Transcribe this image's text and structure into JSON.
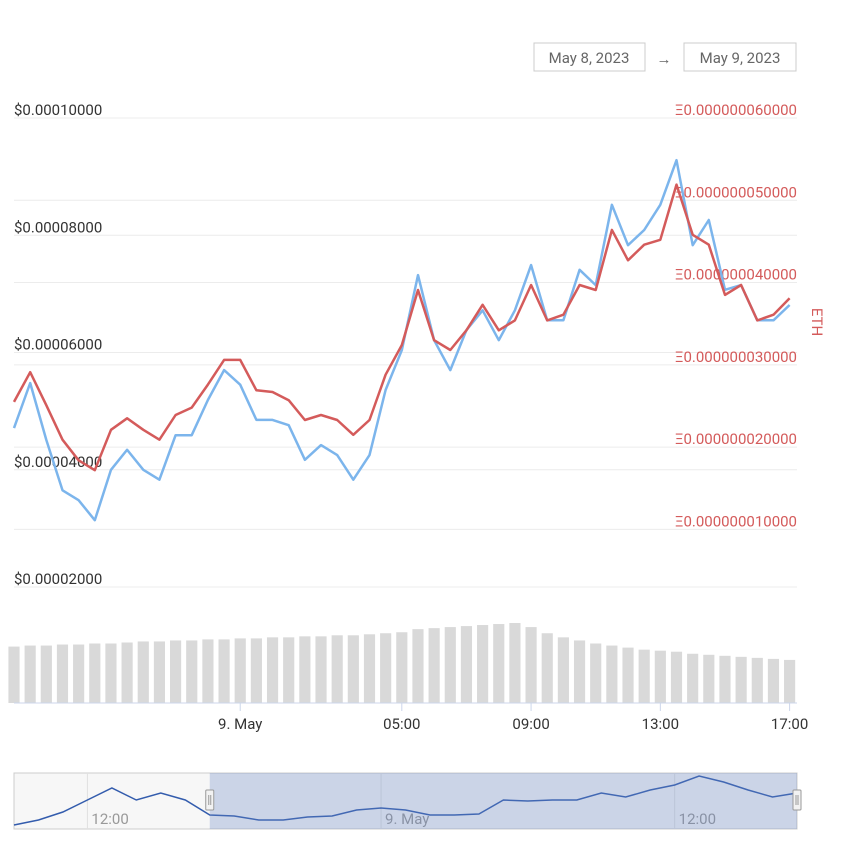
{
  "date_range": {
    "from": "May 8, 2023",
    "separator": "→",
    "to": "May 9, 2023"
  },
  "chart_data": {
    "type": "line",
    "x": [
      "2023-05-08 17:00",
      "2023-05-08 17:30",
      "2023-05-08 18:00",
      "2023-05-08 18:30",
      "2023-05-08 19:00",
      "2023-05-08 19:30",
      "2023-05-08 20:00",
      "2023-05-08 20:30",
      "2023-05-08 21:00",
      "2023-05-08 21:30",
      "2023-05-08 22:00",
      "2023-05-08 22:30",
      "2023-05-08 23:00",
      "2023-05-08 23:30",
      "2023-05-09 00:00",
      "2023-05-09 00:30",
      "2023-05-09 01:00",
      "2023-05-09 01:30",
      "2023-05-09 02:00",
      "2023-05-09 02:30",
      "2023-05-09 03:00",
      "2023-05-09 03:30",
      "2023-05-09 04:00",
      "2023-05-09 04:30",
      "2023-05-09 05:00",
      "2023-05-09 05:30",
      "2023-05-09 06:00",
      "2023-05-09 06:30",
      "2023-05-09 07:00",
      "2023-05-09 07:30",
      "2023-05-09 08:00",
      "2023-05-09 08:30",
      "2023-05-09 09:00",
      "2023-05-09 09:30",
      "2023-05-09 10:00",
      "2023-05-09 10:30",
      "2023-05-09 11:00",
      "2023-05-09 11:30",
      "2023-05-09 12:00",
      "2023-05-09 12:30",
      "2023-05-09 13:00",
      "2023-05-09 13:30",
      "2023-05-09 14:00",
      "2023-05-09 14:30",
      "2023-05-09 15:00",
      "2023-05-09 15:30",
      "2023-05-09 16:00",
      "2023-05-09 16:30",
      "2023-05-09 17:00"
    ],
    "xlim": [
      "2023-05-08 17:00",
      "2023-05-09 17:10"
    ],
    "xticks": [
      {
        "value": "2023-05-09 00:00",
        "label": "9. May"
      },
      {
        "value": "2023-05-09 05:00",
        "label": "05:00"
      },
      {
        "value": "2023-05-09 09:00",
        "label": "09:00"
      },
      {
        "value": "2023-05-09 13:00",
        "label": "13:00"
      },
      {
        "value": "2023-05-09 17:00",
        "label": "17:00"
      }
    ],
    "ylim": [
      2e-05,
      0.0001
    ],
    "yticks": [
      {
        "value": 2e-05,
        "label": "$0.00002000"
      },
      {
        "value": 4e-05,
        "label": "$0.00004000"
      },
      {
        "value": 6e-05,
        "label": "$0.00006000"
      },
      {
        "value": 8e-05,
        "label": "$0.00008000"
      },
      {
        "value": 0.0001,
        "label": "$0.00010000"
      }
    ],
    "y2lim": [
      3e-09,
      6e-08
    ],
    "y2ticks": [
      {
        "value": 1e-08,
        "label": "Ξ0.000000010000"
      },
      {
        "value": 2e-08,
        "label": "Ξ0.000000020000"
      },
      {
        "value": 3e-08,
        "label": "Ξ0.000000030000"
      },
      {
        "value": 4e-08,
        "label": "Ξ0.000000040000"
      },
      {
        "value": 5e-08,
        "label": "Ξ0.000000050000"
      },
      {
        "value": 6e-08,
        "label": "Ξ0.000000060000"
      }
    ],
    "y2label": "ETH",
    "grid": true,
    "series": [
      {
        "color": "#7cb5ec",
        "values": [
          4.71e-05,
          5.48e-05,
          4.51e-05,
          3.65e-05,
          3.48e-05,
          3.14e-05,
          4e-05,
          4.34e-05,
          4e-05,
          3.83e-05,
          4.59e-05,
          4.59e-05,
          5.19e-05,
          5.7e-05,
          5.45e-05,
          4.85e-05,
          4.85e-05,
          4.76e-05,
          4.17e-05,
          4.42e-05,
          4.25e-05,
          3.83e-05,
          4.25e-05,
          5.36e-05,
          6.04e-05,
          7.32e-05,
          6.21e-05,
          5.7e-05,
          6.38e-05,
          6.72e-05,
          6.21e-05,
          6.72e-05,
          7.49e-05,
          6.55e-05,
          6.55e-05,
          7.41e-05,
          7.15e-05,
          8.52e-05,
          7.83e-05,
          8.09e-05,
          8.52e-05,
          9.28e-05,
          7.83e-05,
          8.26e-05,
          7.07e-05,
          7.15e-05,
          6.55e-05,
          6.55e-05,
          6.81e-05
        ]
      },
      {
        "color": "#d45b5b",
        "axis": "y2",
        "values": [
          2.55e-08,
          2.91e-08,
          2.51e-08,
          2.09e-08,
          1.84e-08,
          1.72e-08,
          2.21e-08,
          2.35e-08,
          2.21e-08,
          2.09e-08,
          2.39e-08,
          2.48e-08,
          2.76e-08,
          3.06e-08,
          3.06e-08,
          2.69e-08,
          2.67e-08,
          2.57e-08,
          2.33e-08,
          2.39e-08,
          2.33e-08,
          2.15e-08,
          2.33e-08,
          2.88e-08,
          3.24e-08,
          3.91e-08,
          3.3e-08,
          3.18e-08,
          3.42e-08,
          3.73e-08,
          3.42e-08,
          3.54e-08,
          3.97e-08,
          3.54e-08,
          3.61e-08,
          3.97e-08,
          3.91e-08,
          4.64e-08,
          4.27e-08,
          4.46e-08,
          4.52e-08,
          5.19e-08,
          4.58e-08,
          4.46e-08,
          3.85e-08,
          3.97e-08,
          3.54e-08,
          3.61e-08,
          3.81e-08
        ]
      }
    ],
    "volume": {
      "color": "#d9d9d9",
      "values": [
        55,
        56,
        56,
        57,
        57,
        58,
        58,
        59,
        60,
        60,
        61,
        61,
        62,
        62,
        63,
        63,
        64,
        64,
        65,
        65,
        66,
        66,
        67,
        68,
        69,
        72,
        73,
        74,
        75,
        76,
        77,
        78,
        74,
        68,
        64,
        61,
        58,
        56,
        54,
        52,
        51,
        50,
        48,
        47,
        46,
        45,
        44,
        43,
        42
      ]
    },
    "navigator": {
      "x": [
        "2023-05-08 09:00",
        "2023-05-08 10:00",
        "2023-05-08 11:00",
        "2023-05-08 12:00",
        "2023-05-08 13:00",
        "2023-05-08 14:00",
        "2023-05-08 15:00",
        "2023-05-08 16:00",
        "2023-05-08 17:00",
        "2023-05-08 18:00",
        "2023-05-08 19:00",
        "2023-05-08 20:00",
        "2023-05-08 21:00",
        "2023-05-08 22:00",
        "2023-05-08 23:00",
        "2023-05-09 00:00",
        "2023-05-09 01:00",
        "2023-05-09 02:00",
        "2023-05-09 03:00",
        "2023-05-09 04:00",
        "2023-05-09 05:00",
        "2023-05-09 06:00",
        "2023-05-09 07:00",
        "2023-05-09 08:00",
        "2023-05-09 09:00",
        "2023-05-09 10:00",
        "2023-05-09 11:00",
        "2023-05-09 12:00",
        "2023-05-09 13:00",
        "2023-05-09 14:00",
        "2023-05-09 15:00",
        "2023-05-09 16:00",
        "2023-05-09 17:00"
      ],
      "values": [
        3.5e-05,
        4.13e-05,
        5.13e-05,
        6.63e-05,
        8.13e-05,
        6.63e-05,
        7.5e-05,
        6.63e-05,
        4.75e-05,
        4.63e-05,
        4.13e-05,
        4.13e-05,
        4.5e-05,
        4.63e-05,
        5.38e-05,
        5.63e-05,
        5.38e-05,
        4.75e-05,
        4.75e-05,
        4.88e-05,
        6.63e-05,
        6.5e-05,
        6.63e-05,
        6.63e-05,
        7.5e-05,
        7e-05,
        7.88e-05,
        8.5e-05,
        9.63e-05,
        8.88e-05,
        7.88e-05,
        7e-05,
        7.5e-05
      ],
      "xlim": [
        "2023-05-08 09:00",
        "2023-05-09 17:00"
      ],
      "ylim": [
        3e-05,
        0.0001
      ],
      "xticks": [
        {
          "value": "2023-05-08 12:00",
          "label": "12:00"
        },
        {
          "value": "2023-05-09 00:00",
          "label": "9. May"
        },
        {
          "value": "2023-05-09 12:00",
          "label": "12:00"
        }
      ],
      "color": "#335cad"
    }
  }
}
